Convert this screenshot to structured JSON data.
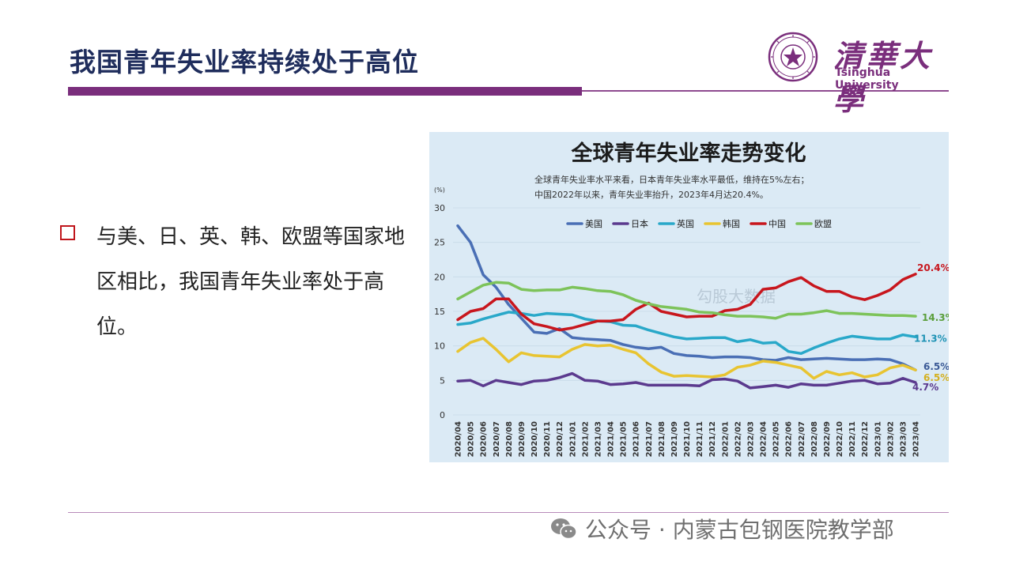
{
  "slide": {
    "title": "我国青年失业率持续处于高位",
    "bullet": "与美、日、英、韩、欧盟等国家地区相比，我国青年失业率处于高位。"
  },
  "logo": {
    "cn": "清華大學",
    "en": "Tsinghua University"
  },
  "watermark": {
    "text": "公众号 · 内蒙古包钢医院教学部"
  },
  "colors": {
    "accent": "#7a2e7c",
    "title": "#1f2d5c",
    "bullet": "#c0161c"
  },
  "chart_data": {
    "type": "line",
    "title": "全球青年失业率走势变化",
    "subtitle_line1": "全球青年失业率水平来看，日本青年失业率水平最低，维持在5%左右；",
    "subtitle_line2": "中国2022年以来，青年失业率抬升，2023年4月达20.4%。",
    "unit": "(%)",
    "ylim": [
      0,
      30
    ],
    "yticks": [
      0,
      5,
      10,
      15,
      20,
      25,
      30
    ],
    "x": [
      "2020/04",
      "2020/05",
      "2020/06",
      "2020/07",
      "2020/08",
      "2020/09",
      "2020/10",
      "2020/11",
      "2020/12",
      "2021/01",
      "2021/02",
      "2021/03",
      "2021/04",
      "2021/05",
      "2021/06",
      "2021/07",
      "2021/08",
      "2021/09",
      "2021/10",
      "2021/11",
      "2021/12",
      "2022/01",
      "2022/02",
      "2022/03",
      "2022/04",
      "2022/05",
      "2022/06",
      "2022/07",
      "2022/08",
      "2022/09",
      "2022/10",
      "2022/11",
      "2022/12",
      "2023/01",
      "2023/02",
      "2023/03",
      "2023/04"
    ],
    "legend_placement": "top-left",
    "series": [
      {
        "name": "美国",
        "color": "#4a6fb5",
        "values": [
          27.4,
          25.0,
          20.3,
          18.5,
          16.0,
          14.0,
          12.0,
          11.8,
          12.5,
          11.2,
          11.0,
          10.9,
          10.8,
          10.2,
          9.8,
          9.6,
          9.8,
          8.9,
          8.6,
          8.5,
          8.3,
          8.4,
          8.4,
          8.3,
          8.0,
          7.9,
          8.3,
          8.0,
          8.1,
          8.2,
          8.1,
          8.0,
          8.0,
          8.1,
          8.0,
          7.4,
          6.5
        ]
      },
      {
        "name": "日本",
        "color": "#5b3a8e",
        "values": [
          4.9,
          5.0,
          4.2,
          5.0,
          4.7,
          4.4,
          4.9,
          5.0,
          5.4,
          6.0,
          5.0,
          4.9,
          4.4,
          4.5,
          4.7,
          4.3,
          4.3,
          4.3,
          4.3,
          4.2,
          5.1,
          5.2,
          4.9,
          3.9,
          4.1,
          4.3,
          4.0,
          4.5,
          4.3,
          4.3,
          4.6,
          4.9,
          5.0,
          4.5,
          4.6,
          5.3,
          4.7
        ]
      },
      {
        "name": "英国",
        "color": "#29a8c9",
        "values": [
          13.1,
          13.3,
          13.9,
          14.4,
          14.9,
          14.7,
          14.4,
          14.7,
          14.6,
          14.5,
          13.9,
          13.6,
          13.5,
          13.0,
          12.9,
          12.3,
          11.8,
          11.3,
          11.0,
          11.1,
          11.2,
          11.2,
          10.6,
          10.9,
          10.4,
          10.5,
          9.2,
          8.9,
          9.7,
          10.4,
          11.0,
          11.4,
          11.2,
          11.0,
          11.0,
          11.6,
          11.3
        ]
      },
      {
        "name": "韩国",
        "color": "#e8c431",
        "values": [
          9.2,
          10.5,
          11.1,
          9.5,
          7.7,
          9.0,
          8.6,
          8.5,
          8.4,
          9.5,
          10.2,
          10.0,
          10.1,
          9.5,
          9.0,
          7.4,
          6.2,
          5.6,
          5.7,
          5.6,
          5.5,
          5.8,
          6.9,
          7.2,
          7.8,
          7.6,
          7.2,
          6.8,
          5.3,
          6.3,
          5.8,
          6.1,
          5.5,
          5.8,
          6.8,
          7.2,
          6.5
        ]
      },
      {
        "name": "中国",
        "color": "#c8161d",
        "values": [
          13.8,
          15.0,
          15.4,
          16.8,
          16.8,
          14.6,
          13.2,
          12.8,
          12.3,
          12.6,
          13.1,
          13.6,
          13.6,
          13.8,
          15.3,
          16.2,
          15.0,
          14.6,
          14.2,
          14.3,
          14.3,
          15.1,
          15.3,
          16.0,
          18.2,
          18.4,
          19.3,
          19.9,
          18.7,
          17.9,
          17.9,
          17.1,
          16.7,
          17.3,
          18.1,
          19.6,
          20.4
        ]
      },
      {
        "name": "欧盟",
        "color": "#7dc35a",
        "values": [
          16.8,
          17.8,
          18.8,
          19.2,
          19.1,
          18.2,
          18.0,
          18.1,
          18.1,
          18.5,
          18.3,
          18.0,
          17.9,
          17.4,
          16.6,
          16.1,
          15.7,
          15.5,
          15.3,
          14.9,
          14.8,
          14.5,
          14.3,
          14.3,
          14.2,
          14.0,
          14.6,
          14.6,
          14.8,
          15.1,
          14.7,
          14.7,
          14.6,
          14.5,
          14.4,
          14.4,
          14.3
        ]
      }
    ],
    "end_labels": [
      {
        "text": "20.4%",
        "color": "#c8161d",
        "value": 20.4,
        "series": "中国"
      },
      {
        "text": "14.3%",
        "color": "#5a9e3a",
        "value": 14.3,
        "series": "欧盟"
      },
      {
        "text": "11.3%",
        "color": "#1f93b5",
        "value": 11.3,
        "series": "英国"
      },
      {
        "text": "6.5%",
        "color": "#3b5a96",
        "value": 6.5,
        "series": "美国"
      },
      {
        "text": "6.5%",
        "color": "#d4b01e",
        "value": 6.5,
        "series": "韩国"
      },
      {
        "text": "4.7%",
        "color": "#5b3a8e",
        "value": 4.7,
        "series": "日本"
      }
    ],
    "chart_watermark": "勾股大数据"
  }
}
